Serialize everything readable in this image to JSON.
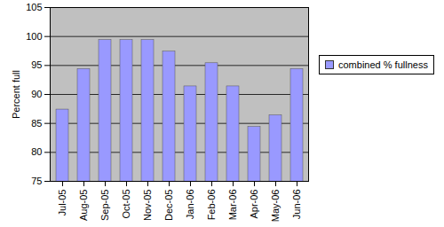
{
  "chart_data": {
    "type": "bar",
    "ylabel": "Percent full",
    "categories": [
      "Jul-05",
      "Aug-05",
      "Sep-05",
      "Oct-05",
      "Nov-05",
      "Dec-05",
      "Jan-06",
      "Feb-06",
      "Mar-06",
      "Apr-06",
      "May-06",
      "Jun-06"
    ],
    "series": [
      {
        "name": "combined % fullness",
        "color": "#9999ff",
        "values": [
          88,
          95,
          100,
          100,
          100,
          98,
          92,
          96,
          92,
          85,
          87,
          95
        ]
      }
    ],
    "ylim": [
      75,
      105
    ],
    "yticks": [
      75,
      80,
      85,
      90,
      95,
      100,
      105
    ],
    "grid": true,
    "legend": "right"
  }
}
